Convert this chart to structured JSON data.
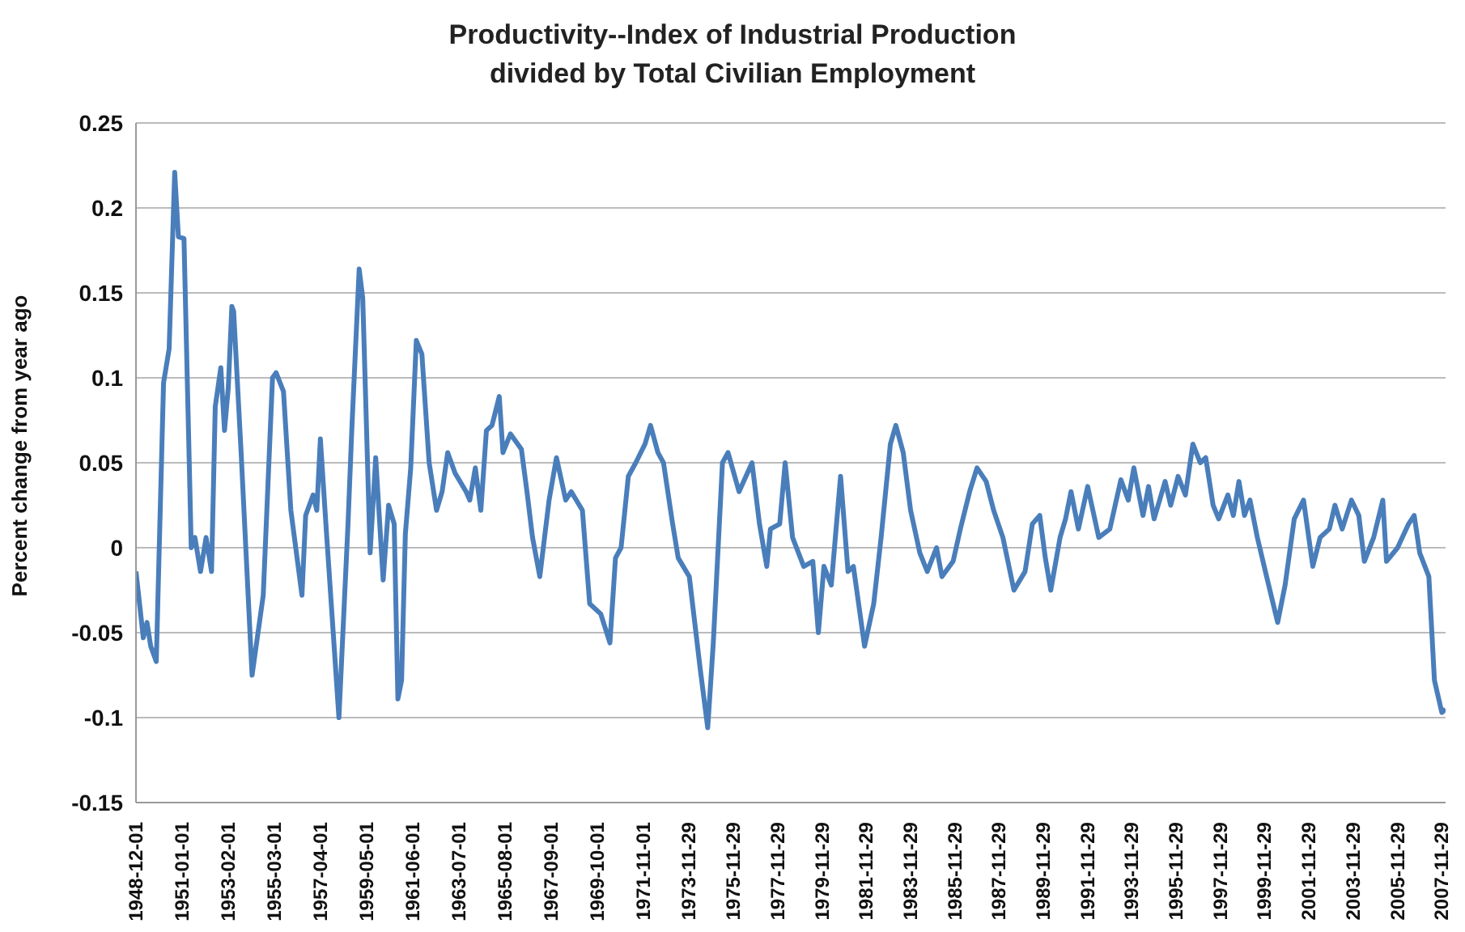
{
  "chart_data": {
    "type": "line",
    "title": "Productivity--Index of Industrial Production\ndivided by Total Civilian Employment",
    "ylabel": "Percent change from year ago",
    "x": [
      "1948-12",
      "1949-04",
      "1949-06",
      "1949-08",
      "1949-11",
      "1950-03",
      "1950-06",
      "1950-09",
      "1950-11",
      "1951-02",
      "1951-06",
      "1951-08",
      "1951-11",
      "1952-02",
      "1952-05",
      "1952-07",
      "1952-10",
      "1952-12",
      "1953-02",
      "1953-04",
      "1953-05",
      "1953-09",
      "1954-03",
      "1954-09",
      "1955-02",
      "1955-04",
      "1955-08",
      "1955-12",
      "1956-06",
      "1956-08",
      "1956-12",
      "1957-02",
      "1957-04",
      "1957-07",
      "1958-02",
      "1958-07",
      "1958-09",
      "1959-01",
      "1959-03",
      "1959-07",
      "1959-10",
      "1960-02",
      "1960-05",
      "1960-08",
      "1960-10",
      "1960-12",
      "1961-02",
      "1961-05",
      "1961-08",
      "1961-11",
      "1962-03",
      "1962-07",
      "1962-10",
      "1963-01",
      "1963-05",
      "1963-11",
      "1964-01",
      "1964-04",
      "1964-07",
      "1964-10",
      "1965-01",
      "1965-05",
      "1965-07",
      "1965-11",
      "1966-05",
      "1966-08",
      "1966-11",
      "1967-03",
      "1967-08",
      "1967-12",
      "1968-05",
      "1968-08",
      "1969-02",
      "1969-06",
      "1969-12",
      "1970-05",
      "1970-08",
      "1970-11",
      "1971-03",
      "1971-07",
      "1971-12",
      "1972-03",
      "1972-07",
      "1972-10",
      "1973-03",
      "1973-06",
      "1973-12",
      "1974-06",
      "1974-10",
      "1975-01",
      "1975-06",
      "1975-09",
      "1976-03",
      "1976-10",
      "1977-02",
      "1977-06",
      "1977-08",
      "1978-01",
      "1978-04",
      "1978-08",
      "1979-02",
      "1979-07",
      "1979-10",
      "1980-01",
      "1980-05",
      "1980-10",
      "1981-02",
      "1981-05",
      "1981-11",
      "1982-04",
      "1982-08",
      "1983-01",
      "1983-04",
      "1983-08",
      "1983-12",
      "1984-05",
      "1984-09",
      "1985-02",
      "1985-05",
      "1985-11",
      "1986-03",
      "1986-08",
      "1986-12",
      "1987-05",
      "1987-09",
      "1988-02",
      "1988-08",
      "1989-02",
      "1989-06",
      "1989-10",
      "1990-01",
      "1990-04",
      "1990-09",
      "1990-12",
      "1991-03",
      "1991-07",
      "1991-12",
      "1992-06",
      "1992-12",
      "1993-06",
      "1993-10",
      "1994-01",
      "1994-06",
      "1994-09",
      "1994-12",
      "1995-06",
      "1995-09",
      "1996-01",
      "1996-05",
      "1996-09",
      "1997-01",
      "1997-04",
      "1997-08",
      "1997-11",
      "1998-04",
      "1998-07",
      "1998-10",
      "1999-01",
      "1999-04",
      "1999-08",
      "2000-01",
      "2000-07",
      "2000-11",
      "2001-04",
      "2001-09",
      "2002-02",
      "2002-06",
      "2002-11",
      "2003-02",
      "2003-06",
      "2003-11",
      "2004-03",
      "2004-06",
      "2004-11",
      "2005-04",
      "2005-06",
      "2005-12",
      "2006-06",
      "2006-09",
      "2006-12",
      "2007-05",
      "2007-08",
      "2007-12",
      "2008-02"
    ],
    "series": [
      {
        "color": "#4a7ebb",
        "values": [
          -0.014,
          -0.053,
          -0.044,
          -0.058,
          -0.067,
          0.097,
          0.117,
          0.221,
          0.183,
          0.182,
          0.0,
          0.006,
          -0.014,
          0.006,
          -0.014,
          0.083,
          0.106,
          0.069,
          0.094,
          0.142,
          0.139,
          0.056,
          -0.075,
          -0.028,
          0.1,
          0.103,
          0.092,
          0.022,
          -0.028,
          0.019,
          0.031,
          0.022,
          0.064,
          0.014,
          -0.1,
          0.014,
          0.069,
          0.164,
          0.147,
          -0.003,
          0.053,
          -0.019,
          0.025,
          0.014,
          -0.089,
          -0.078,
          0.008,
          0.047,
          0.122,
          0.114,
          0.05,
          0.022,
          0.033,
          0.056,
          0.044,
          0.033,
          0.028,
          0.047,
          0.022,
          0.069,
          0.072,
          0.089,
          0.056,
          0.067,
          0.058,
          0.033,
          0.006,
          -0.017,
          0.028,
          0.053,
          0.028,
          0.033,
          0.022,
          -0.033,
          -0.039,
          -0.056,
          -0.006,
          0.0,
          0.042,
          0.05,
          0.061,
          0.072,
          0.056,
          0.05,
          0.014,
          -0.006,
          -0.017,
          -0.072,
          -0.106,
          -0.056,
          0.05,
          0.056,
          0.033,
          0.05,
          0.014,
          -0.011,
          0.011,
          0.014,
          0.05,
          0.006,
          -0.011,
          -0.008,
          -0.05,
          -0.011,
          -0.022,
          0.042,
          -0.014,
          -0.011,
          -0.058,
          -0.033,
          0.006,
          0.061,
          0.072,
          0.056,
          0.022,
          -0.003,
          -0.014,
          0.0,
          -0.017,
          -0.008,
          0.011,
          0.033,
          0.047,
          0.039,
          0.022,
          0.006,
          -0.025,
          -0.014,
          0.014,
          0.019,
          -0.006,
          -0.025,
          0.006,
          0.017,
          0.033,
          0.011,
          0.036,
          0.006,
          0.011,
          0.04,
          0.028,
          0.047,
          0.019,
          0.036,
          0.017,
          0.039,
          0.025,
          0.042,
          0.031,
          0.061,
          0.05,
          0.053,
          0.025,
          0.017,
          0.031,
          0.019,
          0.039,
          0.019,
          0.028,
          0.006,
          -0.017,
          -0.044,
          -0.022,
          0.017,
          0.028,
          -0.011,
          0.006,
          0.011,
          0.025,
          0.011,
          0.028,
          0.019,
          -0.008,
          0.006,
          0.028,
          -0.008,
          0.0,
          0.014,
          0.019,
          -0.003,
          -0.017,
          -0.078,
          -0.097,
          -0.095
        ]
      }
    ],
    "xlim": [
      "1948-12",
      "2008-02"
    ],
    "xticks": [
      "1948-12-01",
      "1951-01-01",
      "1953-02-01",
      "1955-03-01",
      "1957-04-01",
      "1959-05-01",
      "1961-06-01",
      "1963-07-01",
      "1965-08-01",
      "1967-09-01",
      "1969-10-01",
      "1971-11-01",
      "1973-11-29",
      "1975-11-29",
      "1977-11-29",
      "1979-11-29",
      "1981-11-29",
      "1983-11-29",
      "1985-11-29",
      "1987-11-29",
      "1989-11-29",
      "1991-11-29",
      "1993-11-29",
      "1995-11-29",
      "1997-11-29",
      "1999-11-29",
      "2001-11-29",
      "2003-11-29",
      "2005-11-29",
      "2007-11-29"
    ],
    "ylim": [
      -0.15,
      0.25
    ],
    "yticks": [
      -0.15,
      -0.1,
      -0.05,
      0,
      0.05,
      0.1,
      0.15,
      0.2,
      0.25
    ],
    "grid": "y",
    "legend": false,
    "marker": "none",
    "line_style": "solid"
  }
}
